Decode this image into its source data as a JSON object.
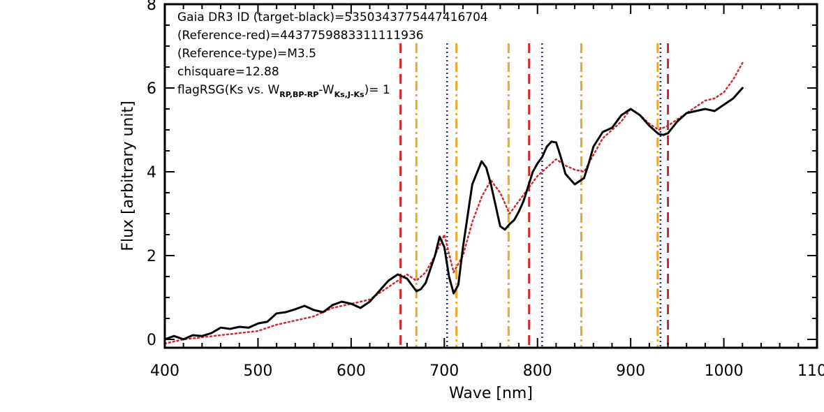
{
  "chart_data": {
    "type": "line",
    "xlabel": "Wave [nm]",
    "ylabel": "Flux [arbitrary unit]",
    "xlim": [
      400,
      1100
    ],
    "ylim": [
      -0.2,
      8
    ],
    "x_ticks": [
      "400",
      "500",
      "600",
      "700",
      "800",
      "900",
      "1000",
      "1100"
    ],
    "y_ticks": [
      "0",
      "2",
      "4",
      "6",
      "8"
    ],
    "x_tick_values": [
      400,
      500,
      600,
      700,
      800,
      900,
      1000,
      1100
    ],
    "y_tick_values": [
      0,
      2,
      4,
      6,
      8
    ],
    "annotations": {
      "line1": "Gaia DR3 ID (target-black)=5350343775447416704",
      "line2": "(Reference-red)=4437759883311111936",
      "line3": "(Reference-type)=M3.5",
      "line4": "chisquare=12.88",
      "line5_prefix": "flagRSG(Ks vs. W",
      "line5_sub1": "RP,BP-RP",
      "line5_mid": "-W",
      "line5_sub2": "Ks,J-Ks",
      "line5_suffix": ")= 1"
    },
    "series": [
      {
        "color": "#000000",
        "style": "solid",
        "x": [
          400,
          410,
          420,
          430,
          440,
          450,
          460,
          470,
          480,
          490,
          500,
          510,
          520,
          530,
          540,
          550,
          560,
          570,
          580,
          590,
          600,
          610,
          620,
          630,
          640,
          650,
          655,
          660,
          665,
          670,
          675,
          680,
          690,
          695,
          700,
          705,
          710,
          715,
          720,
          730,
          740,
          745,
          750,
          755,
          760,
          765,
          770,
          775,
          780,
          785,
          790,
          795,
          800,
          805,
          810,
          815,
          820,
          825,
          830,
          840,
          850,
          855,
          860,
          870,
          880,
          890,
          900,
          910,
          920,
          930,
          935,
          940,
          950,
          960,
          970,
          980,
          990,
          1000,
          1010,
          1020
        ],
        "y": [
          0.0,
          0.08,
          0.0,
          0.1,
          0.08,
          0.15,
          0.28,
          0.25,
          0.3,
          0.28,
          0.38,
          0.42,
          0.62,
          0.65,
          0.72,
          0.8,
          0.7,
          0.65,
          0.82,
          0.9,
          0.85,
          0.75,
          0.9,
          1.15,
          1.4,
          1.55,
          1.5,
          1.45,
          1.3,
          1.15,
          1.2,
          1.35,
          2.0,
          2.45,
          2.2,
          1.5,
          1.1,
          1.3,
          2.2,
          3.7,
          4.25,
          4.1,
          3.7,
          3.2,
          2.7,
          2.62,
          2.75,
          2.85,
          3.05,
          3.3,
          3.65,
          4.0,
          4.2,
          4.35,
          4.6,
          4.72,
          4.7,
          4.35,
          3.95,
          3.7,
          3.85,
          4.2,
          4.6,
          4.95,
          5.05,
          5.35,
          5.5,
          5.35,
          5.1,
          4.9,
          4.88,
          4.92,
          5.2,
          5.4,
          5.45,
          5.5,
          5.45,
          5.6,
          5.75,
          6.0
        ]
      },
      {
        "color": "#d62728",
        "style": "dotted",
        "x": [
          400,
          420,
          440,
          460,
          480,
          500,
          520,
          540,
          560,
          580,
          600,
          620,
          640,
          650,
          660,
          670,
          680,
          690,
          700,
          710,
          720,
          730,
          740,
          750,
          760,
          770,
          780,
          790,
          800,
          810,
          820,
          830,
          840,
          850,
          860,
          870,
          880,
          890,
          900,
          910,
          920,
          930,
          940,
          950,
          960,
          970,
          980,
          990,
          1000,
          1010,
          1020
        ],
        "y": [
          -0.1,
          0.0,
          0.05,
          0.1,
          0.15,
          0.2,
          0.35,
          0.45,
          0.55,
          0.75,
          0.85,
          0.95,
          1.25,
          1.4,
          1.55,
          1.4,
          1.6,
          2.0,
          2.5,
          1.6,
          2.0,
          2.8,
          3.4,
          3.8,
          3.5,
          3.0,
          3.3,
          3.6,
          3.9,
          4.1,
          4.3,
          4.15,
          4.05,
          4.0,
          4.4,
          4.8,
          5.0,
          5.2,
          5.5,
          5.35,
          5.15,
          5.0,
          5.1,
          5.25,
          5.4,
          5.55,
          5.7,
          5.75,
          5.9,
          6.2,
          6.6
        ]
      }
    ],
    "vertical_lines": [
      {
        "x": 653,
        "color": "#d62728",
        "style": "dashed"
      },
      {
        "x": 670,
        "color": "#e8a92b",
        "style": "dashdot"
      },
      {
        "x": 703,
        "color": "#2a2a8a",
        "style": "dotted"
      },
      {
        "x": 713,
        "color": "#e8a92b",
        "style": "dashdot"
      },
      {
        "x": 769,
        "color": "#e8a92b",
        "style": "dashdot"
      },
      {
        "x": 791,
        "color": "#d62728",
        "style": "dashed"
      },
      {
        "x": 805,
        "color": "#2a2a8a",
        "style": "dotted"
      },
      {
        "x": 847,
        "color": "#e8a92b",
        "style": "dashdot"
      },
      {
        "x": 929,
        "color": "#e8a92b",
        "style": "dashdot"
      },
      {
        "x": 932,
        "color": "#2a2a8a",
        "style": "dotted"
      },
      {
        "x": 940,
        "color": "#d62728",
        "style": "dashed"
      }
    ]
  }
}
